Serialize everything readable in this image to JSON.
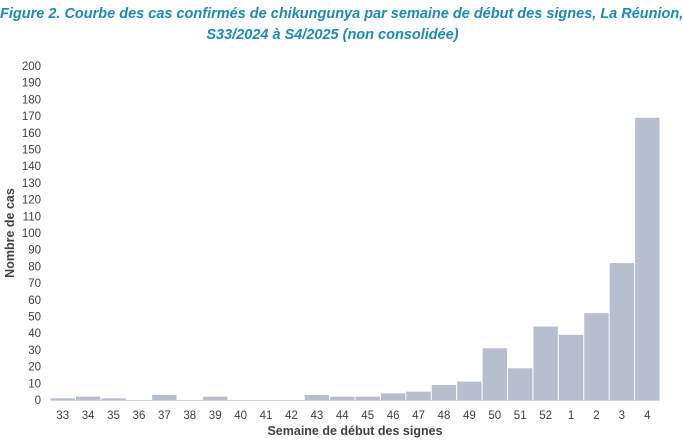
{
  "figure": {
    "title_line1": "Figure 2. Courbe des cas confirmés de chikungunya par semaine de début des signes, La Réunion,",
    "title_line2": "S33/2024 à S4/2025 (non consolidée)"
  },
  "chart_data": {
    "type": "bar",
    "title": "Figure 2. Courbe des cas confirmés de chikungunya par semaine de début des signes, La Réunion, S33/2024 à S4/2025 (non consolidée)",
    "xlabel": "Semaine de début des signes",
    "ylabel": "Nombre de cas",
    "categories": [
      "33",
      "34",
      "35",
      "36",
      "37",
      "38",
      "39",
      "40",
      "41",
      "42",
      "43",
      "44",
      "45",
      "46",
      "47",
      "48",
      "49",
      "50",
      "51",
      "52",
      "1",
      "2",
      "3",
      "4"
    ],
    "values": [
      1,
      2,
      1,
      0,
      3,
      0,
      2,
      0,
      0,
      0,
      3,
      2,
      2,
      4,
      5,
      9,
      11,
      31,
      19,
      44,
      39,
      52,
      82,
      169
    ],
    "ylim": [
      0,
      200
    ],
    "yticks": [
      0,
      10,
      20,
      30,
      40,
      50,
      60,
      70,
      80,
      90,
      100,
      110,
      120,
      130,
      140,
      150,
      160,
      170,
      180,
      190,
      200
    ],
    "bar_color": "#b7bfcf",
    "grid": false,
    "legend": "none"
  }
}
